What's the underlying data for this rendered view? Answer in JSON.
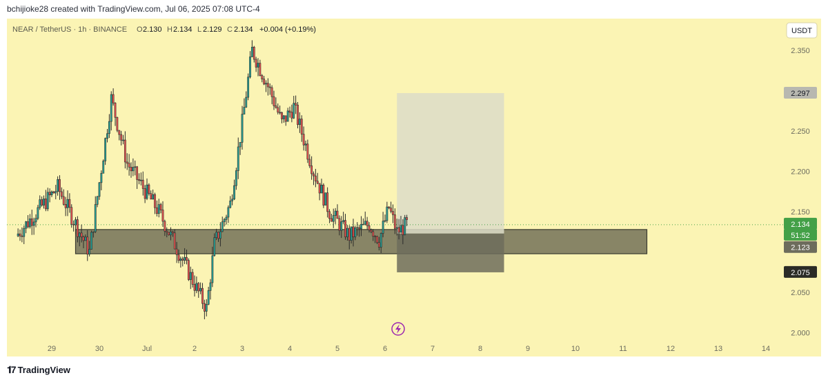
{
  "caption": "bchijioke28 created with TradingView.com, Jul 06, 2025 07:08 UTC-4",
  "legend": {
    "symbol": "NEAR / TetherUS · 1h · BINANCE",
    "o_label": "O",
    "o": "2.130",
    "h_label": "H",
    "h": "2.134",
    "l_label": "L",
    "l": "2.129",
    "c_label": "C",
    "c": "2.134",
    "change": "+0.004 (+0.19%)"
  },
  "currency_button": "USDT",
  "price_labels": {
    "current": "2.134",
    "countdown": "51:52",
    "second": "2.123",
    "tp": "2.297",
    "sl": "2.075"
  },
  "footer": {
    "brand": "TradingView"
  },
  "colors": {
    "background": "#fbf4b4",
    "up": "#26a69a",
    "down": "#ef5350",
    "candle_ink": "#2b2b2b",
    "zone": "#5b5a48",
    "target_box": "#dcdcc8",
    "stop_box": "#6d6c5c",
    "current_price": "#43a047",
    "accent_icon": "#9c27b0"
  },
  "chart_data": {
    "type": "candlestick",
    "title": "NEAR / TetherUS · 1h · BINANCE",
    "ylim": [
      1.975,
      2.385
    ],
    "yticks": [
      2.0,
      2.05,
      2.1,
      2.15,
      2.2,
      2.25,
      2.3,
      2.35
    ],
    "ytick_labels": [
      "2.000",
      "2.050",
      "",
      "2.150",
      "2.200",
      "2.250",
      "",
      "2.350"
    ],
    "x_labels": [
      "29",
      "30",
      "Jul",
      "2",
      "3",
      "4",
      "5",
      "6",
      "7",
      "8",
      "9",
      "10",
      "11",
      "12",
      "13",
      "14"
    ],
    "key_points": [
      {
        "t": "28 06:00",
        "price": 2.12
      },
      {
        "t": "29 03:00",
        "price": 2.18
      },
      {
        "t": "29 19:00",
        "price": 2.1
      },
      {
        "t": "30 06:00",
        "price": 2.29
      },
      {
        "t": "30 14:00",
        "price": 2.21
      },
      {
        "t": "01 06:00",
        "price": 2.15
      },
      {
        "t": "01 22:00",
        "price": 2.07
      },
      {
        "t": "02 06:00",
        "price": 2.03
      },
      {
        "t": "02 10:00",
        "price": 2.11
      },
      {
        "t": "02 18:00",
        "price": 2.16
      },
      {
        "t": "03 00:00",
        "price": 2.26
      },
      {
        "t": "03 05:00",
        "price": 2.35
      },
      {
        "t": "03 14:00",
        "price": 2.3
      },
      {
        "t": "03 20:00",
        "price": 2.26
      },
      {
        "t": "04 02:00",
        "price": 2.28
      },
      {
        "t": "04 12:00",
        "price": 2.2
      },
      {
        "t": "04 20:00",
        "price": 2.15
      },
      {
        "t": "05 06:00",
        "price": 2.12
      },
      {
        "t": "05 16:00",
        "price": 2.135
      },
      {
        "t": "05 21:00",
        "price": 2.115
      },
      {
        "t": "06 02:00",
        "price": 2.155
      },
      {
        "t": "06 06:00",
        "price": 2.125
      },
      {
        "t": "06 11:00",
        "price": 2.134
      }
    ],
    "demand_zone": {
      "low": 2.098,
      "high": 2.128,
      "from": "29 12:00",
      "to": "11 12:00"
    },
    "position": {
      "entry": 2.123,
      "target": 2.297,
      "stop": 2.075,
      "from": "06 06:00",
      "to": "08 12:00"
    },
    "last_price": 2.134
  }
}
